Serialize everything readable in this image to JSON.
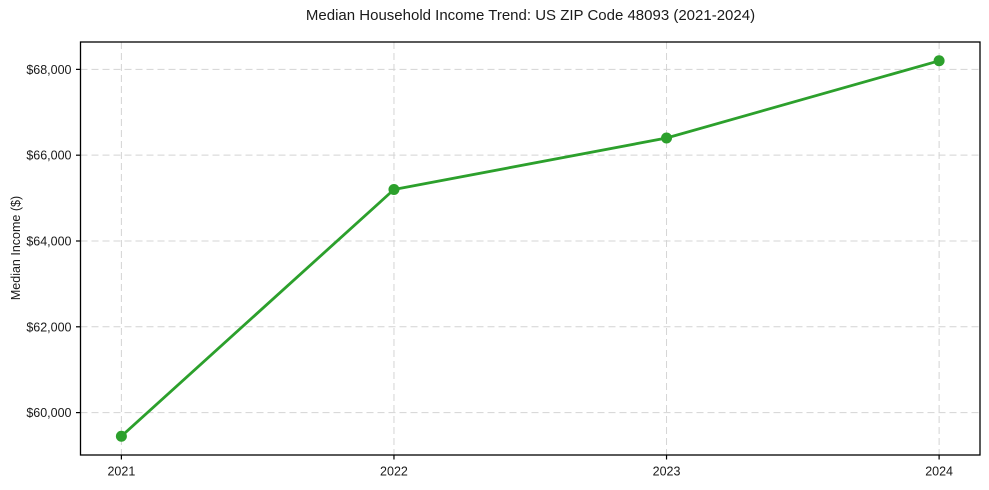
{
  "chart_data": {
    "type": "line",
    "title": "Median Household Income Trend: US ZIP Code 48093 (2021-2024)",
    "xlabel": "",
    "ylabel": "Median Income ($)",
    "x": [
      2021,
      2022,
      2023,
      2024
    ],
    "x_tick_labels": [
      "2021",
      "2022",
      "2023",
      "2024"
    ],
    "series": [
      {
        "values": [
          59450,
          65200,
          66400,
          68200
        ],
        "color": "#2ca02c",
        "marker": "circle",
        "marker_diameter": 11,
        "line_width": 2.8
      }
    ],
    "y_ticks": [
      60000,
      62000,
      64000,
      66000,
      68000
    ],
    "y_tick_labels": [
      "$60,000",
      "$62,000",
      "$64,000",
      "$66,000",
      "$68,000"
    ],
    "xlim": [
      2020.85,
      2024.15
    ],
    "ylim": [
      59012,
      68638
    ],
    "grid": true,
    "grid_style": "dashed",
    "grid_color": "#d4d4d4",
    "axis_color": "#000000",
    "text_color": "#1a1a1a",
    "background": "#ffffff",
    "legend": "none"
  }
}
